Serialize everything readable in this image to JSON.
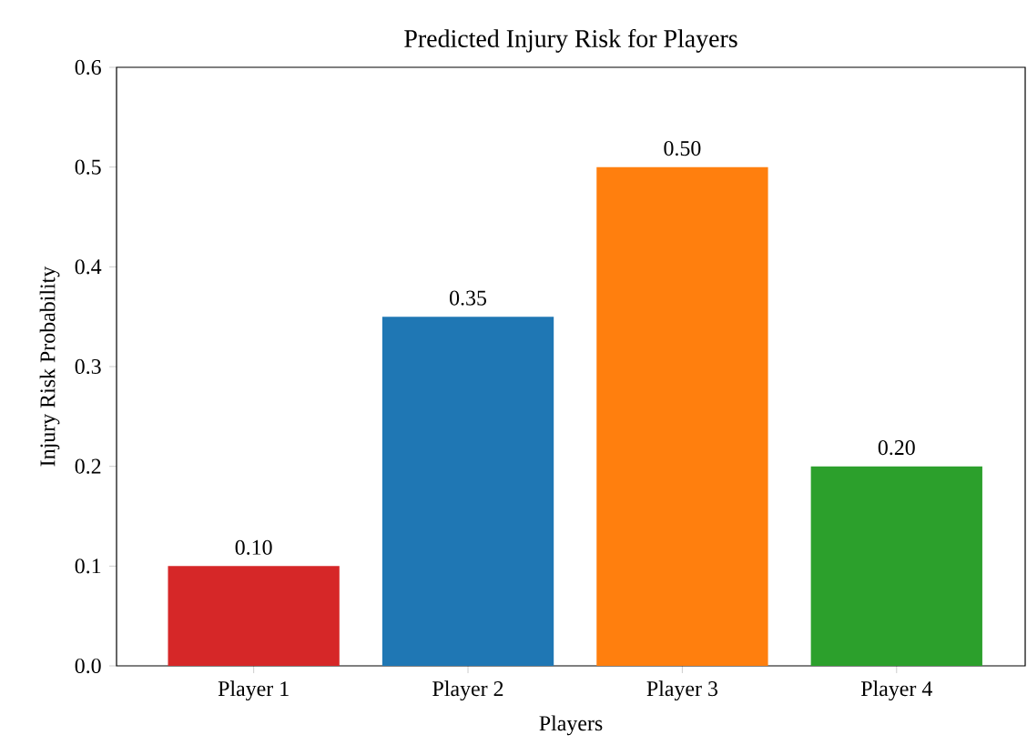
{
  "chart_data": {
    "type": "bar",
    "title": "Predicted Injury Risk for Players",
    "xlabel": "Players",
    "ylabel": "Injury Risk Probability",
    "categories": [
      "Player 1",
      "Player 2",
      "Player 3",
      "Player 4"
    ],
    "values": [
      0.1,
      0.35,
      0.5,
      0.2
    ],
    "colors": [
      "#d62728",
      "#1f77b4",
      "#ff7f0e",
      "#2ca02c"
    ],
    "value_labels": [
      "0.10",
      "0.35",
      "0.50",
      "0.20"
    ],
    "ylim": [
      0,
      0.6
    ],
    "yticks": [
      {
        "value": 0,
        "label": "0.0"
      },
      {
        "value": 0.1,
        "label": "0.1"
      },
      {
        "value": 0.2,
        "label": "0.2"
      },
      {
        "value": 0.3,
        "label": "0.3"
      },
      {
        "value": 0.4,
        "label": "0.4"
      },
      {
        "value": 0.5,
        "label": "0.5"
      },
      {
        "value": 0.6,
        "label": "0.6"
      }
    ]
  }
}
